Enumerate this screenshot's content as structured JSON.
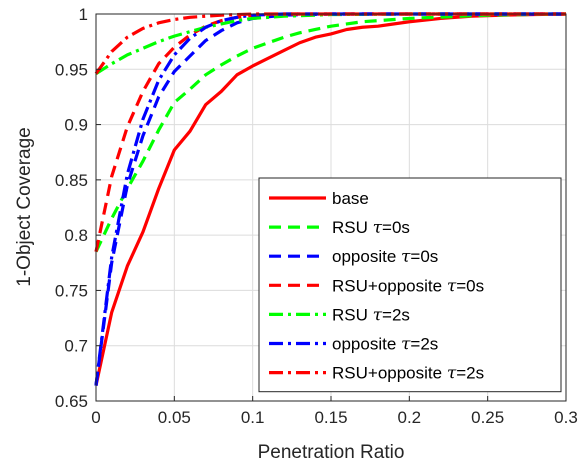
{
  "chart_data": {
    "type": "line",
    "xlabel": "Penetration Ratio",
    "ylabel": "1-Object Coverage",
    "xlim": [
      0,
      0.3
    ],
    "ylim": [
      0.65,
      1
    ],
    "xticks": [
      0,
      0.05,
      0.1,
      0.15,
      0.2,
      0.25,
      0.3
    ],
    "yticks": [
      0.65,
      0.7,
      0.75,
      0.8,
      0.85,
      0.9,
      0.95,
      1
    ],
    "xtick_labels": [
      "0",
      "0.05",
      "0.1",
      "0.15",
      "0.2",
      "0.25",
      "0.3"
    ],
    "ytick_labels": [
      "0.65",
      "0.7",
      "0.75",
      "0.8",
      "0.85",
      "0.9",
      "0.95",
      "1"
    ],
    "grid": true,
    "legend_position": "bottom-right",
    "series": [
      {
        "name": "base",
        "legend_prefix": "base",
        "legend_tau": "",
        "legend_suffix": "",
        "color": "#ff0000",
        "style": "solid",
        "points": [
          [
            0,
            0.664
          ],
          [
            0.01,
            0.73
          ],
          [
            0.02,
            0.772
          ],
          [
            0.03,
            0.803
          ],
          [
            0.04,
            0.842
          ],
          [
            0.05,
            0.877
          ],
          [
            0.06,
            0.894
          ],
          [
            0.07,
            0.918
          ],
          [
            0.08,
            0.93
          ],
          [
            0.09,
            0.945
          ],
          [
            0.1,
            0.953
          ],
          [
            0.11,
            0.96
          ],
          [
            0.12,
            0.967
          ],
          [
            0.13,
            0.974
          ],
          [
            0.14,
            0.979
          ],
          [
            0.15,
            0.982
          ],
          [
            0.16,
            0.986
          ],
          [
            0.17,
            0.988
          ],
          [
            0.18,
            0.989
          ],
          [
            0.2,
            0.993
          ],
          [
            0.22,
            0.996
          ],
          [
            0.24,
            0.998
          ],
          [
            0.26,
            0.999
          ],
          [
            0.28,
            0.9995
          ],
          [
            0.3,
            1.0
          ]
        ]
      },
      {
        "name": "RSU τ=0s",
        "legend_prefix": "RSU ",
        "legend_tau": "τ",
        "legend_suffix": "=0s",
        "color": "#00ff00",
        "style": "dashed",
        "points": [
          [
            0,
            0.785
          ],
          [
            0.01,
            0.815
          ],
          [
            0.02,
            0.842
          ],
          [
            0.03,
            0.867
          ],
          [
            0.04,
            0.895
          ],
          [
            0.05,
            0.92
          ],
          [
            0.06,
            0.932
          ],
          [
            0.07,
            0.945
          ],
          [
            0.08,
            0.954
          ],
          [
            0.09,
            0.962
          ],
          [
            0.1,
            0.969
          ],
          [
            0.11,
            0.974
          ],
          [
            0.12,
            0.979
          ],
          [
            0.13,
            0.983
          ],
          [
            0.14,
            0.986
          ],
          [
            0.15,
            0.989
          ],
          [
            0.17,
            0.993
          ],
          [
            0.2,
            0.996
          ],
          [
            0.25,
            0.999
          ],
          [
            0.3,
            1.0
          ]
        ]
      },
      {
        "name": "opposite τ=0s",
        "legend_prefix": "opposite ",
        "legend_tau": "τ",
        "legend_suffix": "=0s",
        "color": "#0000ff",
        "style": "dashed",
        "points": [
          [
            0,
            0.664
          ],
          [
            0.01,
            0.775
          ],
          [
            0.02,
            0.845
          ],
          [
            0.03,
            0.89
          ],
          [
            0.04,
            0.925
          ],
          [
            0.05,
            0.948
          ],
          [
            0.06,
            0.962
          ],
          [
            0.07,
            0.976
          ],
          [
            0.08,
            0.985
          ],
          [
            0.09,
            0.992
          ],
          [
            0.1,
            0.996
          ],
          [
            0.12,
            0.999
          ],
          [
            0.15,
            1.0
          ],
          [
            0.3,
            1.0
          ]
        ]
      },
      {
        "name": "RSU+opposite τ=0s",
        "legend_prefix": "RSU+opposite ",
        "legend_tau": "τ",
        "legend_suffix": "=0s",
        "color": "#ff0000",
        "style": "dashed",
        "points": [
          [
            0,
            0.785
          ],
          [
            0.01,
            0.853
          ],
          [
            0.02,
            0.898
          ],
          [
            0.03,
            0.93
          ],
          [
            0.04,
            0.955
          ],
          [
            0.05,
            0.97
          ],
          [
            0.06,
            0.981
          ],
          [
            0.07,
            0.989
          ],
          [
            0.08,
            0.994
          ],
          [
            0.09,
            0.997
          ],
          [
            0.1,
            0.999
          ],
          [
            0.12,
            1.0
          ],
          [
            0.3,
            1.0
          ]
        ]
      },
      {
        "name": "RSU τ=2s",
        "legend_prefix": "RSU ",
        "legend_tau": "τ",
        "legend_suffix": "=2s",
        "color": "#00ff00",
        "style": "dashdot",
        "points": [
          [
            0,
            0.946
          ],
          [
            0.01,
            0.955
          ],
          [
            0.02,
            0.963
          ],
          [
            0.03,
            0.969
          ],
          [
            0.04,
            0.975
          ],
          [
            0.05,
            0.98
          ],
          [
            0.06,
            0.984
          ],
          [
            0.07,
            0.988
          ],
          [
            0.08,
            0.991
          ],
          [
            0.09,
            0.994
          ],
          [
            0.1,
            0.996
          ],
          [
            0.12,
            0.998
          ],
          [
            0.15,
            0.9995
          ],
          [
            0.2,
            1.0
          ],
          [
            0.3,
            1.0
          ]
        ]
      },
      {
        "name": "opposite τ=2s",
        "legend_prefix": "opposite ",
        "legend_tau": "τ",
        "legend_suffix": "=2s",
        "color": "#0000ff",
        "style": "dashdot",
        "points": [
          [
            0,
            0.664
          ],
          [
            0.01,
            0.78
          ],
          [
            0.02,
            0.855
          ],
          [
            0.03,
            0.905
          ],
          [
            0.04,
            0.94
          ],
          [
            0.05,
            0.963
          ],
          [
            0.06,
            0.978
          ],
          [
            0.07,
            0.988
          ],
          [
            0.08,
            0.994
          ],
          [
            0.09,
            0.997
          ],
          [
            0.1,
            0.999
          ],
          [
            0.12,
            1.0
          ],
          [
            0.3,
            1.0
          ]
        ]
      },
      {
        "name": "RSU+opposite τ=2s",
        "legend_prefix": "RSU+opposite ",
        "legend_tau": "τ",
        "legend_suffix": "=2s",
        "color": "#ff0000",
        "style": "dashdot",
        "points": [
          [
            0,
            0.946
          ],
          [
            0.01,
            0.966
          ],
          [
            0.02,
            0.979
          ],
          [
            0.03,
            0.987
          ],
          [
            0.04,
            0.992
          ],
          [
            0.05,
            0.995
          ],
          [
            0.06,
            0.997
          ],
          [
            0.07,
            0.998
          ],
          [
            0.08,
            0.999
          ],
          [
            0.1,
            1.0
          ],
          [
            0.3,
            1.0
          ]
        ]
      }
    ]
  }
}
